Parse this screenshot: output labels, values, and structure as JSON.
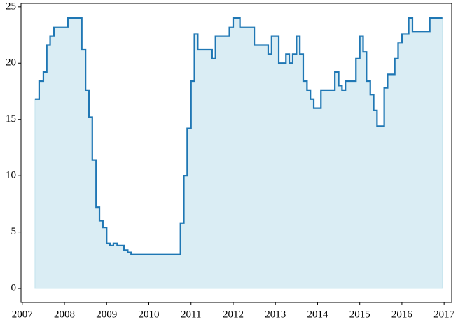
{
  "chart_data": {
    "type": "step",
    "x": [
      2007.3,
      2007.4,
      2007.5,
      2007.58,
      2007.66,
      2007.75,
      2008.08,
      2008.41,
      2008.5,
      2008.58,
      2008.66,
      2008.75,
      2008.83,
      2008.91,
      2009.0,
      2009.08,
      2009.16,
      2009.25,
      2009.41,
      2009.5,
      2009.58,
      2010.75,
      2010.83,
      2010.91,
      2011.0,
      2011.08,
      2011.16,
      2011.5,
      2011.58,
      2011.91,
      2012.0,
      2012.16,
      2012.5,
      2012.83,
      2012.91,
      2013.08,
      2013.25,
      2013.33,
      2013.41,
      2013.5,
      2013.58,
      2013.66,
      2013.75,
      2013.83,
      2013.91,
      2014.08,
      2014.41,
      2014.5,
      2014.58,
      2014.66,
      2014.91,
      2015.0,
      2015.08,
      2015.16,
      2015.25,
      2015.33,
      2015.41,
      2015.58,
      2015.66,
      2015.83,
      2015.91,
      2016.0,
      2016.16,
      2016.25,
      2016.66,
      2016.96
    ],
    "series": [
      {
        "color": "#1f77b4",
        "fill_color": "#add8e6",
        "values": [
          16.8,
          18.4,
          19.2,
          21.6,
          22.4,
          23.2,
          24.0,
          21.2,
          17.6,
          15.2,
          11.4,
          7.2,
          6.0,
          5.4,
          4.0,
          3.8,
          4.0,
          3.8,
          3.4,
          3.2,
          3.0,
          5.8,
          10.0,
          14.2,
          18.4,
          22.6,
          21.2,
          20.4,
          22.4,
          23.2,
          24.0,
          23.2,
          21.6,
          20.8,
          22.4,
          20.0,
          20.8,
          20.0,
          20.8,
          22.4,
          20.8,
          18.4,
          17.6,
          16.8,
          16.0,
          17.6,
          19.2,
          18.0,
          17.6,
          18.4,
          20.4,
          22.4,
          21.0,
          18.4,
          17.2,
          15.8,
          14.4,
          17.8,
          19.0,
          20.4,
          21.8,
          22.6,
          24.0,
          22.8,
          24.0,
          24.0
        ]
      }
    ],
    "xlim": [
      2006.97,
      2017.18
    ],
    "ylim": [
      -1.24,
      25.3
    ],
    "xticks": [
      2007,
      2008,
      2009,
      2010,
      2011,
      2012,
      2013,
      2014,
      2015,
      2016,
      2017
    ],
    "yticks": [
      0,
      5,
      10,
      15,
      20,
      25
    ]
  }
}
